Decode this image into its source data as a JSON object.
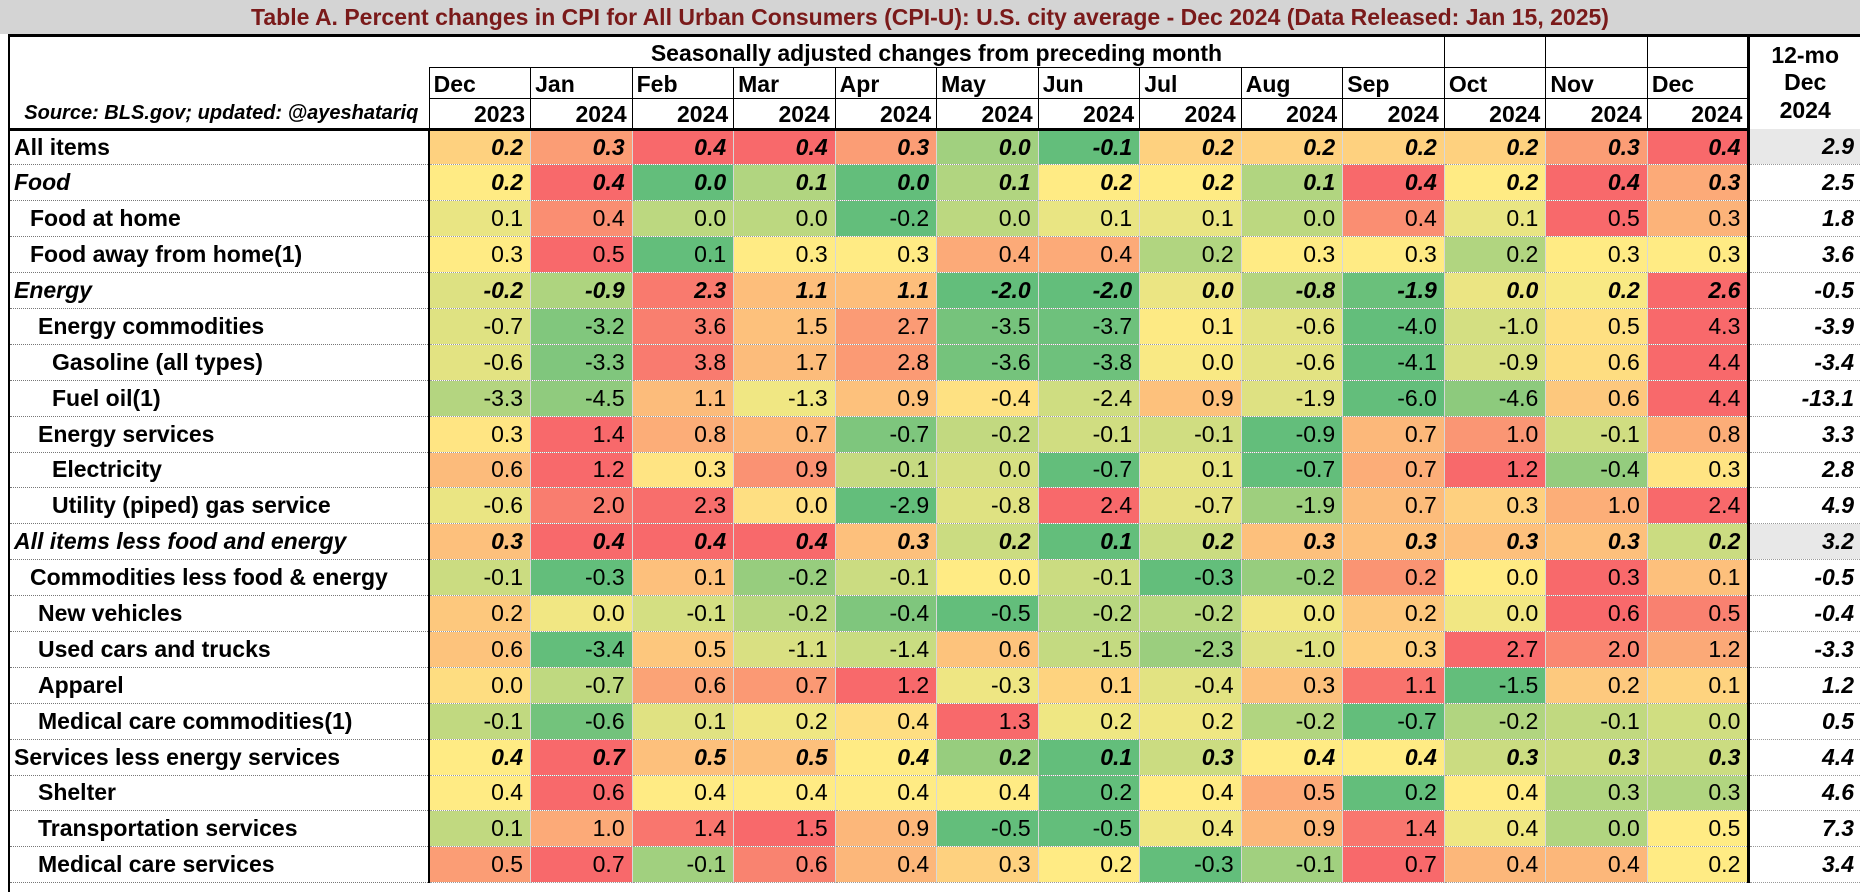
{
  "title": "Table A. Percent changes in CPI for All Urban Consumers (CPI-U): U.S. city average - Dec 2024 (Data Released: Jan 15, 2025)",
  "source": "Source: BLS.gov; updated: @ayeshatariq",
  "header_seasonal": "Seasonally adjusted changes from preceding month",
  "header_12mo": [
    "12-mo",
    "Dec",
    "2024"
  ],
  "months": [
    "Dec",
    "Jan",
    "Feb",
    "Mar",
    "Apr",
    "May",
    "Jun",
    "Jul",
    "Aug",
    "Sep",
    "Oct",
    "Nov",
    "Dec"
  ],
  "years": [
    "2023",
    "2024",
    "2024",
    "2024",
    "2024",
    "2024",
    "2024",
    "2024",
    "2024",
    "2024",
    "2024",
    "2024",
    "2024"
  ],
  "colors": {
    "title": "#7a1a1a",
    "heat_low": "#63be7b",
    "heat_mid": "#ffeb84",
    "heat_high": "#f8696b"
  },
  "chart_data": {
    "type": "table",
    "title": "Table A. Percent changes in CPI for All Urban Consumers (CPI-U): U.S. city average - Dec 2024 (Data Released: Jan 15, 2025)",
    "rows": [
      {
        "label": "All items",
        "indent": 0,
        "italic": false,
        "bold_values": true,
        "values": [
          "0.2",
          "0.3",
          "0.4",
          "0.4",
          "0.3",
          "0.0",
          "-0.1",
          "0.2",
          "0.2",
          "0.2",
          "0.2",
          "0.3",
          "0.4"
        ],
        "yoy": "2.9",
        "yoy_grey": true
      },
      {
        "label": "Food",
        "indent": 0,
        "italic": true,
        "bold_values": true,
        "values": [
          "0.2",
          "0.4",
          "0.0",
          "0.1",
          "0.0",
          "0.1",
          "0.2",
          "0.2",
          "0.1",
          "0.4",
          "0.2",
          "0.4",
          "0.3"
        ],
        "yoy": "2.5",
        "yoy_grey": false
      },
      {
        "label": "Food at home",
        "indent": 1,
        "italic": false,
        "bold_values": false,
        "values": [
          "0.1",
          "0.4",
          "0.0",
          "0.0",
          "-0.2",
          "0.0",
          "0.1",
          "0.1",
          "0.0",
          "0.4",
          "0.1",
          "0.5",
          "0.3"
        ],
        "yoy": "1.8",
        "yoy_grey": false
      },
      {
        "label": "Food away from home(1)",
        "indent": 1,
        "italic": false,
        "bold_values": false,
        "values": [
          "0.3",
          "0.5",
          "0.1",
          "0.3",
          "0.3",
          "0.4",
          "0.4",
          "0.2",
          "0.3",
          "0.3",
          "0.2",
          "0.3",
          "0.3"
        ],
        "yoy": "3.6",
        "yoy_grey": false
      },
      {
        "label": "Energy",
        "indent": 0,
        "italic": true,
        "bold_values": true,
        "values": [
          "-0.2",
          "-0.9",
          "2.3",
          "1.1",
          "1.1",
          "-2.0",
          "-2.0",
          "0.0",
          "-0.8",
          "-1.9",
          "0.0",
          "0.2",
          "2.6"
        ],
        "yoy": "-0.5",
        "yoy_grey": false
      },
      {
        "label": "Energy commodities",
        "indent": 2,
        "italic": false,
        "bold_values": false,
        "values": [
          "-0.7",
          "-3.2",
          "3.6",
          "1.5",
          "2.7",
          "-3.5",
          "-3.7",
          "0.1",
          "-0.6",
          "-4.0",
          "-1.0",
          "0.5",
          "4.3"
        ],
        "yoy": "-3.9",
        "yoy_grey": false
      },
      {
        "label": "Gasoline (all types)",
        "indent": 3,
        "italic": false,
        "bold_values": false,
        "values": [
          "-0.6",
          "-3.3",
          "3.8",
          "1.7",
          "2.8",
          "-3.6",
          "-3.8",
          "0.0",
          "-0.6",
          "-4.1",
          "-0.9",
          "0.6",
          "4.4"
        ],
        "yoy": "-3.4",
        "yoy_grey": false
      },
      {
        "label": "Fuel oil(1)",
        "indent": 3,
        "italic": false,
        "bold_values": false,
        "values": [
          "-3.3",
          "-4.5",
          "1.1",
          "-1.3",
          "0.9",
          "-0.4",
          "-2.4",
          "0.9",
          "-1.9",
          "-6.0",
          "-4.6",
          "0.6",
          "4.4"
        ],
        "yoy": "-13.1",
        "yoy_grey": false
      },
      {
        "label": "Energy services",
        "indent": 2,
        "italic": false,
        "bold_values": false,
        "values": [
          "0.3",
          "1.4",
          "0.8",
          "0.7",
          "-0.7",
          "-0.2",
          "-0.1",
          "-0.1",
          "-0.9",
          "0.7",
          "1.0",
          "-0.1",
          "0.8"
        ],
        "yoy": "3.3",
        "yoy_grey": false
      },
      {
        "label": "Electricity",
        "indent": 3,
        "italic": false,
        "bold_values": false,
        "values": [
          "0.6",
          "1.2",
          "0.3",
          "0.9",
          "-0.1",
          "0.0",
          "-0.7",
          "0.1",
          "-0.7",
          "0.7",
          "1.2",
          "-0.4",
          "0.3"
        ],
        "yoy": "2.8",
        "yoy_grey": false
      },
      {
        "label": "Utility (piped) gas service",
        "indent": 3,
        "italic": false,
        "bold_values": false,
        "values": [
          "-0.6",
          "2.0",
          "2.3",
          "0.0",
          "-2.9",
          "-0.8",
          "2.4",
          "-0.7",
          "-1.9",
          "0.7",
          "0.3",
          "1.0",
          "2.4"
        ],
        "yoy": "4.9",
        "yoy_grey": false
      },
      {
        "label": "All items less food and energy",
        "indent": 0,
        "italic": true,
        "bold_values": true,
        "values": [
          "0.3",
          "0.4",
          "0.4",
          "0.4",
          "0.3",
          "0.2",
          "0.1",
          "0.2",
          "0.3",
          "0.3",
          "0.3",
          "0.3",
          "0.2"
        ],
        "yoy": "3.2",
        "yoy_grey": true
      },
      {
        "label": "Commodities less food & energy",
        "indent": 1,
        "italic": false,
        "bold_values": false,
        "values": [
          "-0.1",
          "-0.3",
          "0.1",
          "-0.2",
          "-0.1",
          "0.0",
          "-0.1",
          "-0.3",
          "-0.2",
          "0.2",
          "0.0",
          "0.3",
          "0.1"
        ],
        "yoy": "-0.5",
        "yoy_grey": false
      },
      {
        "label": "New vehicles",
        "indent": 2,
        "italic": false,
        "bold_values": false,
        "values": [
          "0.2",
          "0.0",
          "-0.1",
          "-0.2",
          "-0.4",
          "-0.5",
          "-0.2",
          "-0.2",
          "0.0",
          "0.2",
          "0.0",
          "0.6",
          "0.5"
        ],
        "yoy": "-0.4",
        "yoy_grey": false
      },
      {
        "label": "Used cars and trucks",
        "indent": 2,
        "italic": false,
        "bold_values": false,
        "values": [
          "0.6",
          "-3.4",
          "0.5",
          "-1.1",
          "-1.4",
          "0.6",
          "-1.5",
          "-2.3",
          "-1.0",
          "0.3",
          "2.7",
          "2.0",
          "1.2"
        ],
        "yoy": "-3.3",
        "yoy_grey": false
      },
      {
        "label": "Apparel",
        "indent": 2,
        "italic": false,
        "bold_values": false,
        "values": [
          "0.0",
          "-0.7",
          "0.6",
          "0.7",
          "1.2",
          "-0.3",
          "0.1",
          "-0.4",
          "0.3",
          "1.1",
          "-1.5",
          "0.2",
          "0.1"
        ],
        "yoy": "1.2",
        "yoy_grey": false
      },
      {
        "label": "Medical care commodities(1)",
        "indent": 2,
        "italic": false,
        "bold_values": false,
        "values": [
          "-0.1",
          "-0.6",
          "0.1",
          "0.2",
          "0.4",
          "1.3",
          "0.2",
          "0.2",
          "-0.2",
          "-0.7",
          "-0.2",
          "-0.1",
          "0.0"
        ],
        "yoy": "0.5",
        "yoy_grey": false
      },
      {
        "label": "Services less energy services",
        "indent": 0,
        "italic": false,
        "bold_values": true,
        "values": [
          "0.4",
          "0.7",
          "0.5",
          "0.5",
          "0.4",
          "0.2",
          "0.1",
          "0.3",
          "0.4",
          "0.4",
          "0.3",
          "0.3",
          "0.3"
        ],
        "yoy": "4.4",
        "yoy_grey": false
      },
      {
        "label": "Shelter",
        "indent": 2,
        "italic": false,
        "bold_values": false,
        "values": [
          "0.4",
          "0.6",
          "0.4",
          "0.4",
          "0.4",
          "0.4",
          "0.2",
          "0.4",
          "0.5",
          "0.2",
          "0.4",
          "0.3",
          "0.3"
        ],
        "yoy": "4.6",
        "yoy_grey": false
      },
      {
        "label": "Transportation services",
        "indent": 2,
        "italic": false,
        "bold_values": false,
        "values": [
          "0.1",
          "1.0",
          "1.4",
          "1.5",
          "0.9",
          "-0.5",
          "-0.5",
          "0.4",
          "0.9",
          "1.4",
          "0.4",
          "0.0",
          "0.5"
        ],
        "yoy": "7.3",
        "yoy_grey": false
      },
      {
        "label": "Medical care services",
        "indent": 2,
        "italic": false,
        "bold_values": false,
        "values": [
          "0.5",
          "0.7",
          "-0.1",
          "0.6",
          "0.4",
          "0.3",
          "0.2",
          "-0.3",
          "-0.1",
          "0.7",
          "0.4",
          "0.4",
          "0.2"
        ],
        "yoy": "3.4",
        "yoy_grey": false
      }
    ]
  }
}
